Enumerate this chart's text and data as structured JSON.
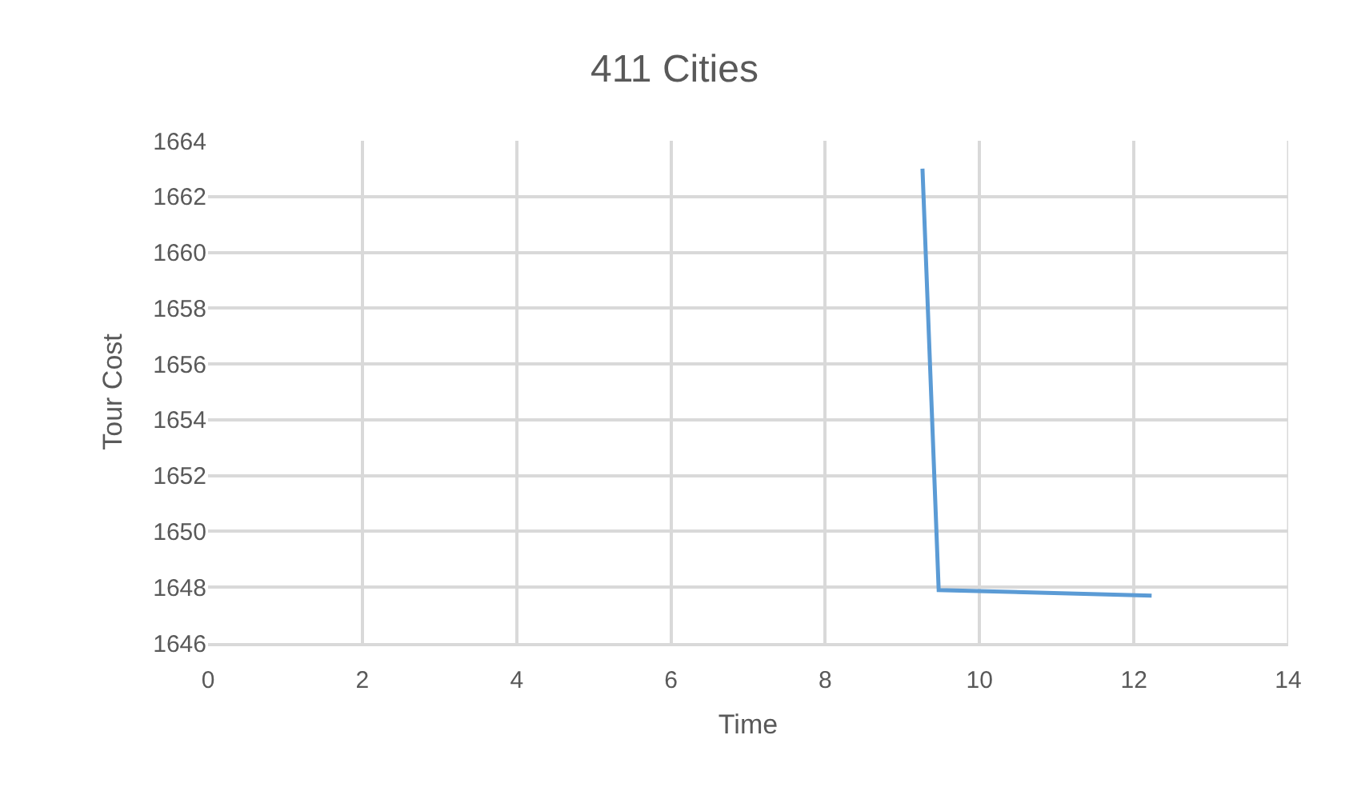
{
  "chart_data": {
    "type": "line",
    "title": "411 Cities",
    "xlabel": "Time",
    "ylabel": "Tour Cost",
    "series": [
      {
        "color": "#5b9bd5",
        "x": [
          9.26,
          9.47,
          12.23
        ],
        "values": [
          1663,
          1647.9,
          1647.7
        ]
      }
    ],
    "xlim": [
      0,
      14
    ],
    "xticks": [
      0,
      2,
      4,
      6,
      8,
      10,
      12,
      14
    ],
    "ylim": [
      1646,
      1664
    ],
    "yticks": [
      1646,
      1648,
      1650,
      1652,
      1654,
      1656,
      1658,
      1660,
      1662,
      1664
    ],
    "grid": true,
    "marker": "none",
    "line_style": "solid"
  }
}
